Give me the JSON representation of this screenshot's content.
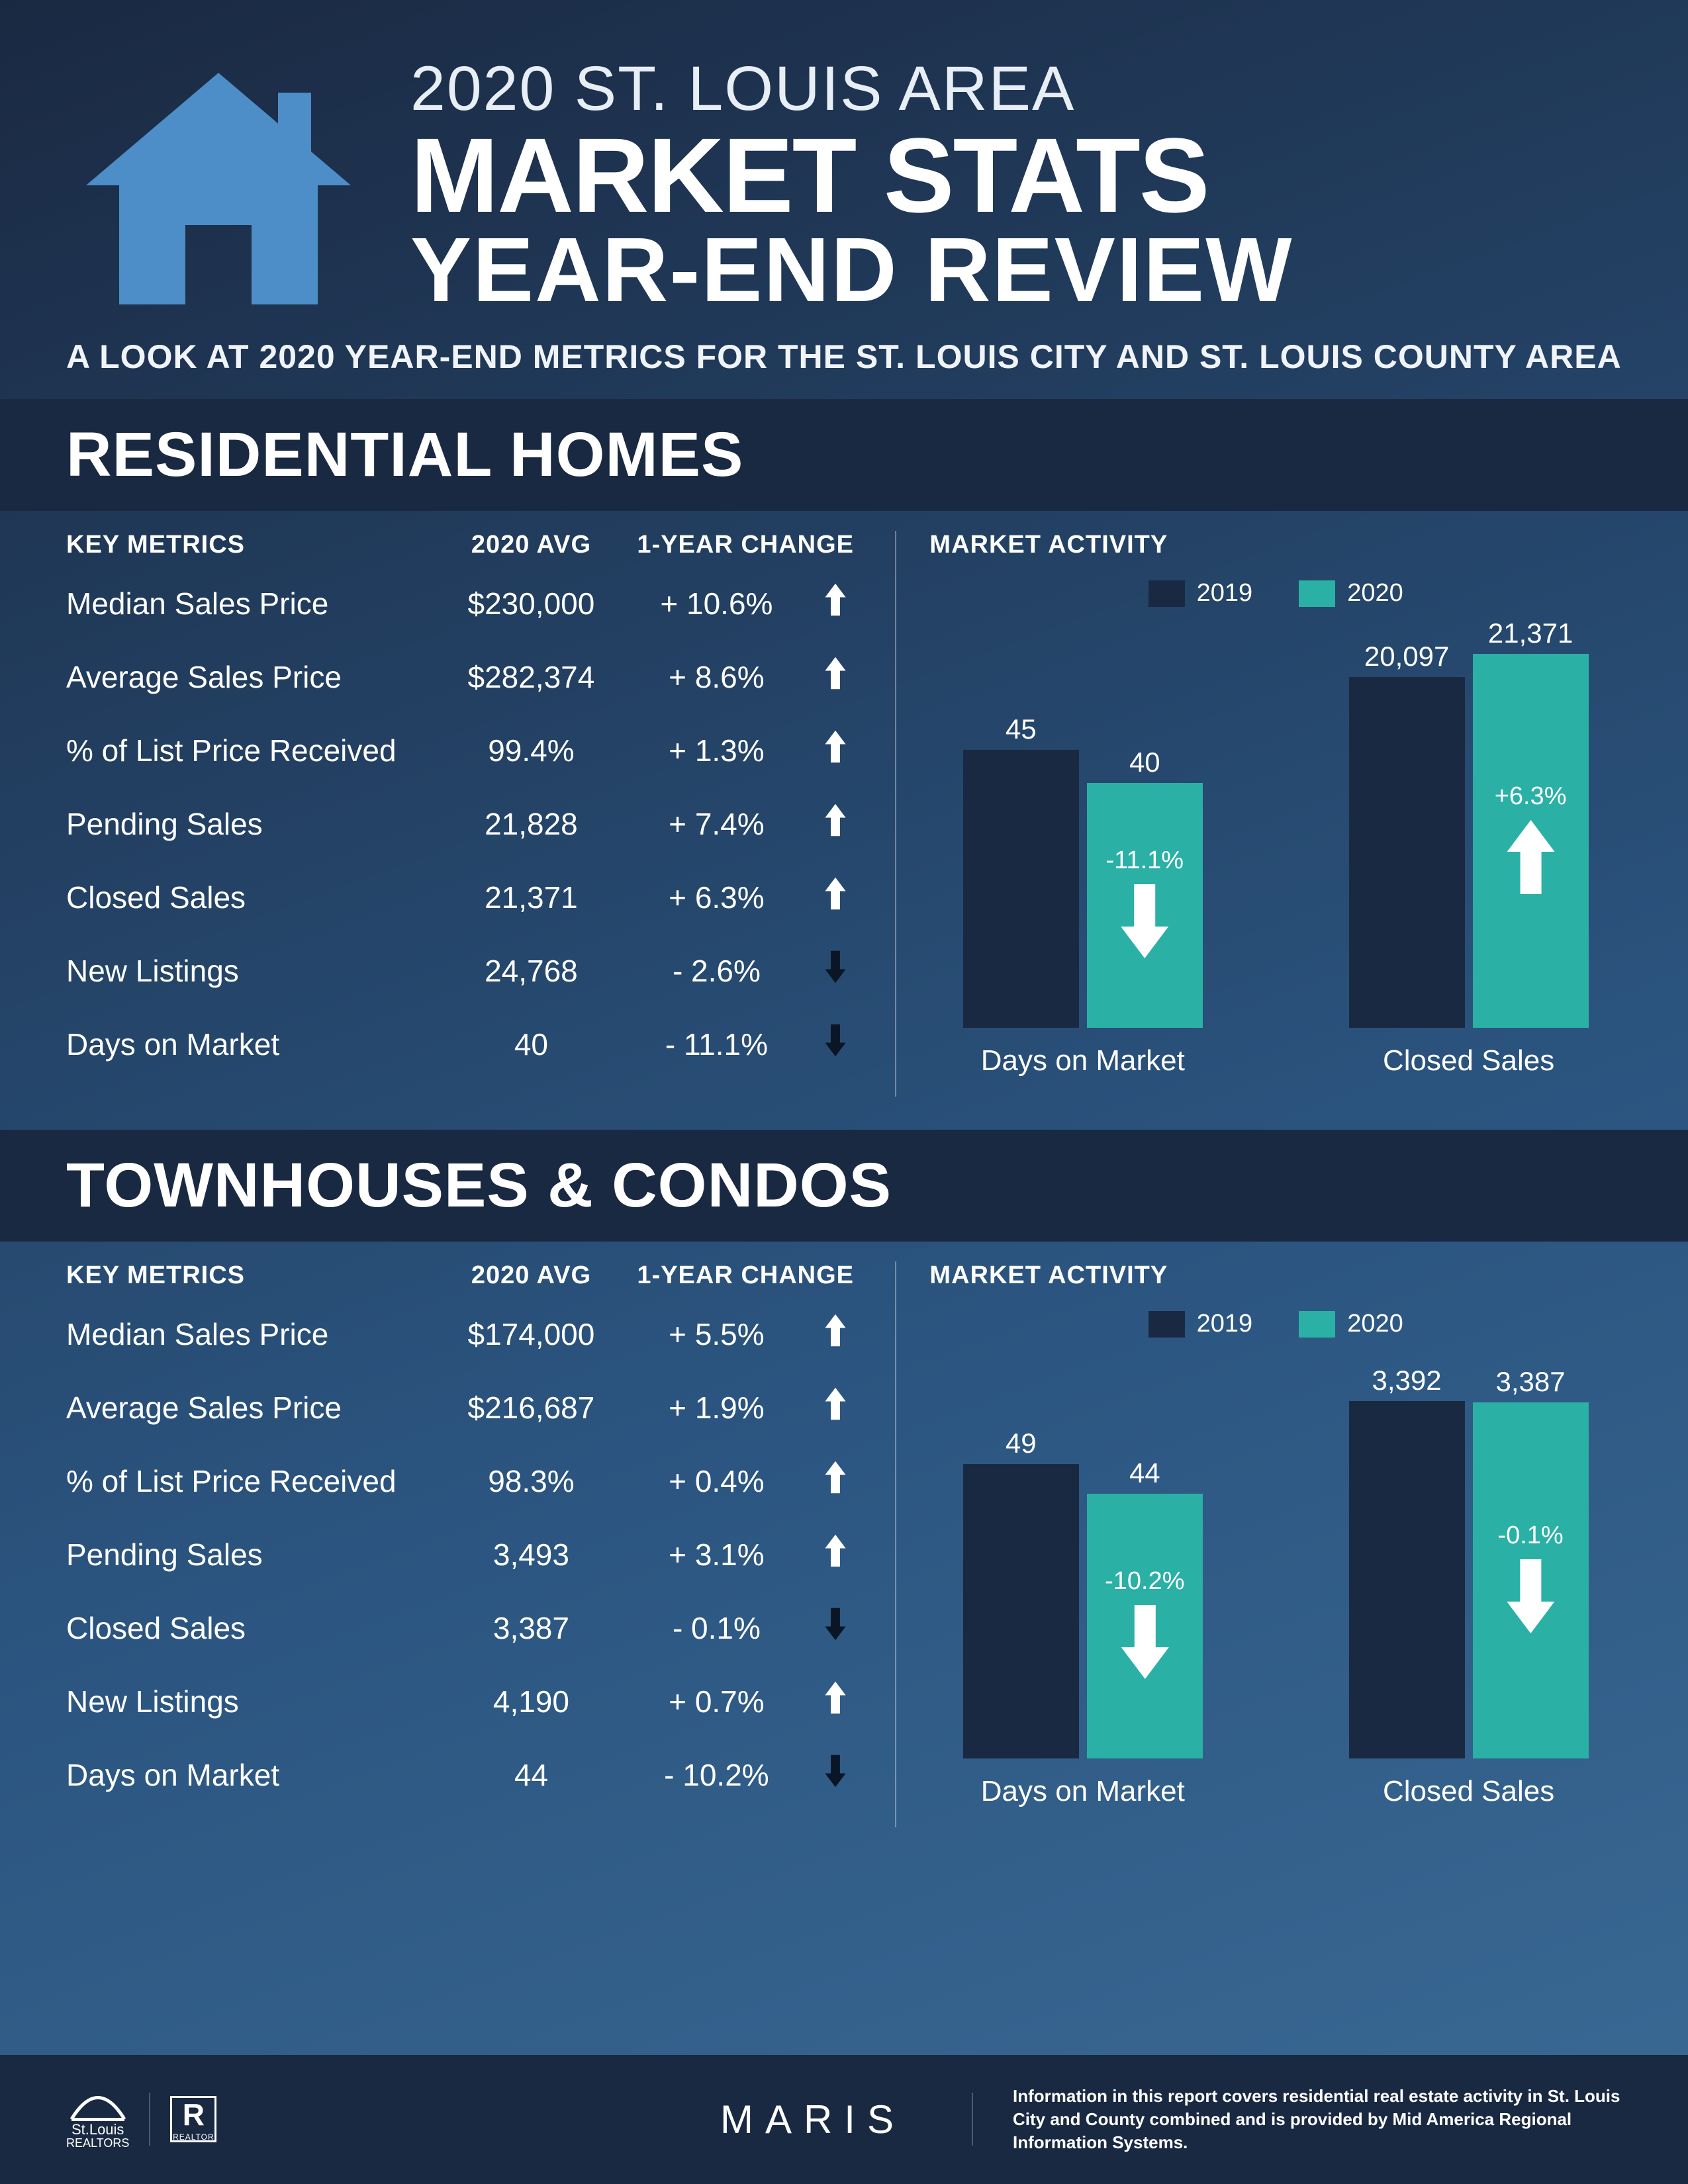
{
  "colors": {
    "bg_dark": "#1a2942",
    "bg_grad_to": "#3a6a95",
    "accent_blue": "#4d8dc8",
    "teal": "#2bb0a6",
    "navy_bar": "#1a2942",
    "white": "#ffffff"
  },
  "header": {
    "line1": "2020 ST. LOUIS AREA",
    "line2": "MARKET STATS",
    "line3": "YEAR-END REVIEW",
    "subtitle": "A LOOK AT 2020 YEAR-END METRICS FOR THE ST. LOUIS CITY AND ST. LOUIS COUNTY AREA"
  },
  "column_labels": {
    "metrics": "KEY METRICS",
    "avg": "2020 AVG",
    "change": "1-YEAR CHANGE",
    "activity": "MARKET ACTIVITY"
  },
  "legend": {
    "y2019": "2019",
    "y2020": "2020"
  },
  "sections": [
    {
      "title": "RESIDENTIAL HOMES",
      "metrics": [
        {
          "label": "Median Sales Price",
          "avg": "$230,000",
          "change": "+ 10.6%",
          "dir": "up"
        },
        {
          "label": "Average Sales Price",
          "avg": "$282,374",
          "change": "+ 8.6%",
          "dir": "up"
        },
        {
          "label": "% of List Price Received",
          "avg": "99.4%",
          "change": "+ 1.3%",
          "dir": "up"
        },
        {
          "label": "Pending Sales",
          "avg": "21,828",
          "change": "+ 7.4%",
          "dir": "up"
        },
        {
          "label": "Closed Sales",
          "avg": "21,371",
          "change": "+ 6.3%",
          "dir": "up"
        },
        {
          "label": "New Listings",
          "avg": "24,768",
          "change": "- 2.6%",
          "dir": "down"
        },
        {
          "label": "Days on Market",
          "avg": "40",
          "change": "- 11.1%",
          "dir": "down"
        }
      ],
      "charts": [
        {
          "label": "Days on Market",
          "v2019": "45",
          "h2019": 420,
          "v2020": "40",
          "h2020": 370,
          "overlay_pct": "-11.1%",
          "overlay_dir": "down"
        },
        {
          "label": "Closed Sales",
          "v2019": "20,097",
          "h2019": 530,
          "v2020": "21,371",
          "h2020": 565,
          "overlay_pct": "+6.3%",
          "overlay_dir": "up"
        }
      ]
    },
    {
      "title": "TOWNHOUSES & CONDOS",
      "metrics": [
        {
          "label": "Median Sales Price",
          "avg": "$174,000",
          "change": "+ 5.5%",
          "dir": "up"
        },
        {
          "label": "Average Sales Price",
          "avg": "$216,687",
          "change": "+ 1.9%",
          "dir": "up"
        },
        {
          "label": "% of List Price Received",
          "avg": "98.3%",
          "change": "+ 0.4%",
          "dir": "up"
        },
        {
          "label": "Pending Sales",
          "avg": "3,493",
          "change": "+ 3.1%",
          "dir": "up"
        },
        {
          "label": "Closed Sales",
          "avg": "3,387",
          "change": "- 0.1%",
          "dir": "down"
        },
        {
          "label": "New Listings",
          "avg": "4,190",
          "change": "+ 0.7%",
          "dir": "up"
        },
        {
          "label": "Days on Market",
          "avg": "44",
          "change": "- 10.2%",
          "dir": "down"
        }
      ],
      "charts": [
        {
          "label": "Days on Market",
          "v2019": "49",
          "h2019": 445,
          "v2020": "44",
          "h2020": 400,
          "overlay_pct": "-10.2%",
          "overlay_dir": "down"
        },
        {
          "label": "Closed Sales",
          "v2019": "3,392",
          "h2019": 540,
          "v2020": "3,387",
          "h2020": 538,
          "overlay_pct": "-0.1%",
          "overlay_dir": "down"
        }
      ]
    }
  ],
  "footer": {
    "logo1_top": "St.Louis",
    "logo1_bottom": "REALTORS",
    "maris": "MARIS",
    "disclaimer": "Information in this report covers residential real estate activity in St. Louis City and County combined and is provided by Mid America Regional Information Systems."
  }
}
